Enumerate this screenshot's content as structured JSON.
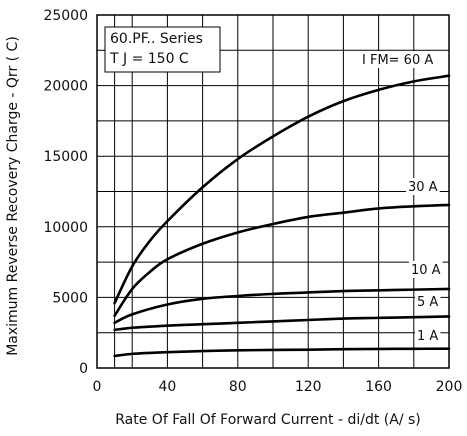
{
  "chart_data": {
    "type": "line",
    "title": "",
    "xlabel": "Rate Of Fall Of Forward Current - di/dt (A/  s)",
    "ylabel": "Maximum Reverse Recovery Charge - Qrr (  C)",
    "xlim": [
      0,
      200
    ],
    "ylim": [
      0,
      25000
    ],
    "x_ticks": [
      0,
      40,
      80,
      120,
      160,
      200
    ],
    "x_tick_labels": [
      "0",
      "40",
      "80",
      "120",
      "160",
      "200"
    ],
    "y_ticks": [
      0,
      5000,
      10000,
      15000,
      20000,
      25000
    ],
    "y_tick_labels": [
      "0",
      "5000",
      "10000",
      "15000",
      "20000",
      "25000"
    ],
    "x_grid": [
      10,
      20,
      40,
      60,
      80,
      100,
      120,
      140,
      160,
      180,
      200
    ],
    "y_grid": [
      2500,
      5000,
      7500,
      10000,
      12500,
      15000,
      17500,
      20000,
      22500
    ],
    "grid": true,
    "annotations": {
      "series_title": "60.PF.. Series",
      "temperature": "T J = 150   C"
    },
    "series": [
      {
        "name": "I FM= 60 A",
        "x": [
          10,
          20,
          30,
          40,
          60,
          80,
          100,
          120,
          140,
          160,
          180,
          200
        ],
        "values": [
          4600,
          7200,
          9000,
          10400,
          12800,
          14800,
          16400,
          17800,
          18900,
          19700,
          20300,
          20700
        ]
      },
      {
        "name": "30 A",
        "x": [
          10,
          20,
          30,
          40,
          60,
          80,
          100,
          120,
          140,
          160,
          180,
          200
        ],
        "values": [
          3700,
          5600,
          6800,
          7700,
          8800,
          9600,
          10200,
          10700,
          11000,
          11300,
          11450,
          11550
        ]
      },
      {
        "name": "10 A",
        "x": [
          10,
          20,
          40,
          60,
          80,
          100,
          120,
          140,
          160,
          180,
          200
        ],
        "values": [
          3200,
          3800,
          4500,
          4900,
          5100,
          5250,
          5350,
          5450,
          5500,
          5550,
          5600
        ]
      },
      {
        "name": "5 A",
        "x": [
          10,
          20,
          40,
          60,
          80,
          100,
          120,
          140,
          160,
          180,
          200
        ],
        "values": [
          2700,
          2850,
          3000,
          3100,
          3200,
          3300,
          3400,
          3500,
          3550,
          3600,
          3650
        ]
      },
      {
        "name": "1 A",
        "x": [
          10,
          20,
          40,
          60,
          80,
          100,
          120,
          140,
          160,
          180,
          200
        ],
        "values": [
          850,
          1000,
          1120,
          1200,
          1250,
          1280,
          1300,
          1330,
          1350,
          1360,
          1370
        ]
      }
    ]
  }
}
